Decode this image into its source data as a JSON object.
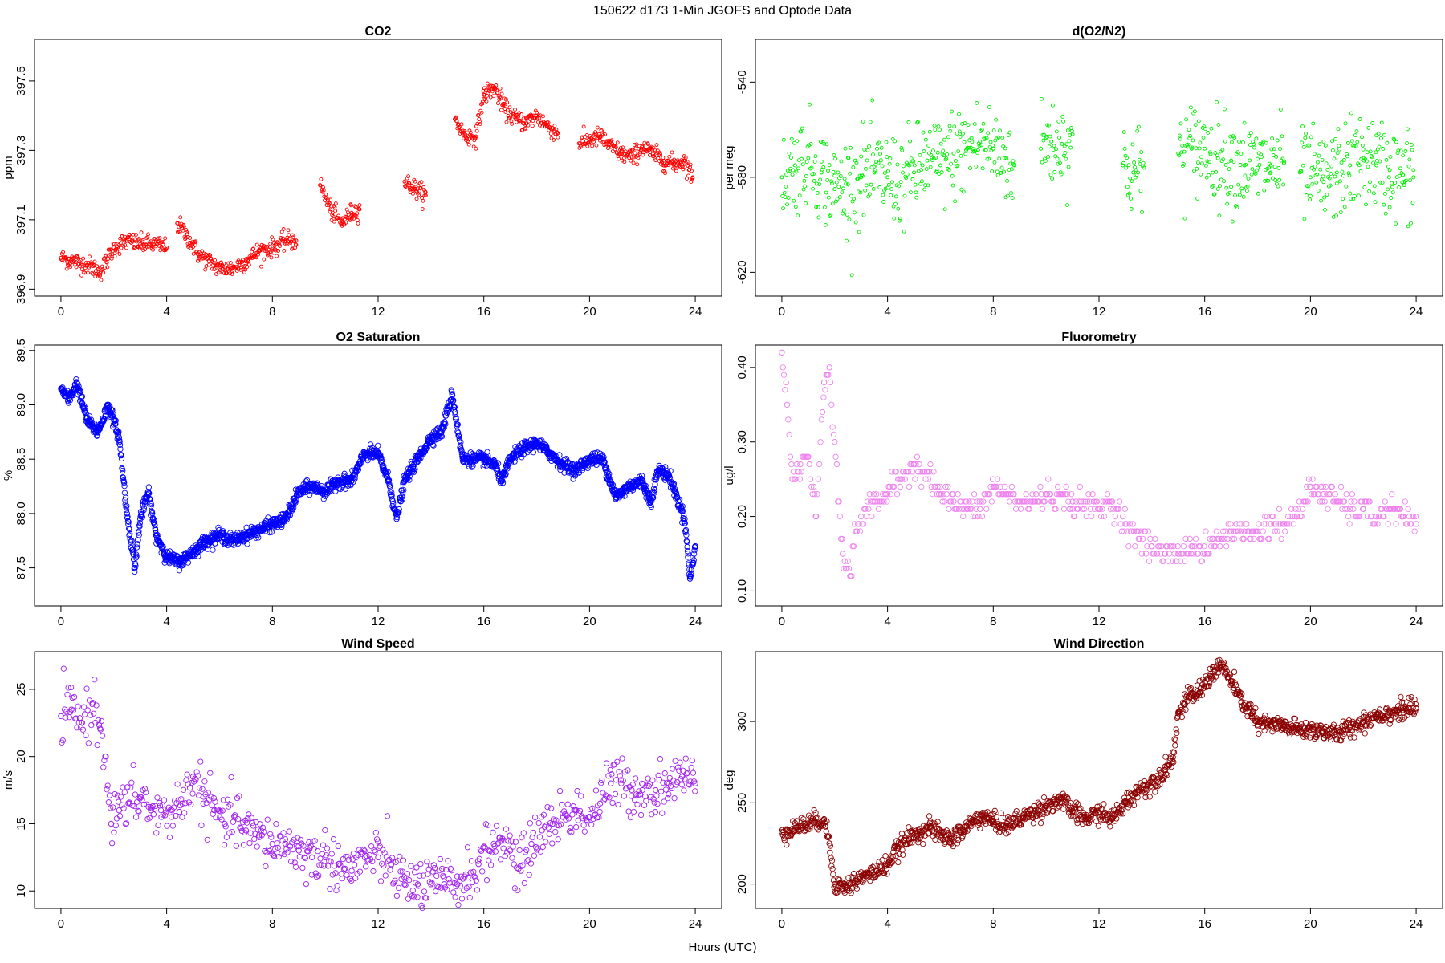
{
  "page": {
    "title": "150622   d173   1-Min  JGOFS and Optode Data",
    "xlabel": "Hours (UTC)"
  },
  "chart_data": [
    {
      "id": "co2",
      "type": "scatter",
      "title": "CO2",
      "ylabel": "ppm",
      "color": "#ff0000",
      "marker_size": "small",
      "xlim": [
        -1,
        25
      ],
      "ylim": [
        396.88,
        397.62
      ],
      "xticks": [
        0,
        4,
        8,
        12,
        16,
        20,
        24
      ],
      "yticks": [
        396.9,
        397.1,
        397.3,
        397.5
      ],
      "ytick_labels": [
        "396.9",
        "397.1",
        "397.3",
        "397.5"
      ],
      "segments": [
        {
          "x": [
            0.0,
            0.5,
            1.0,
            1.5,
            2.0,
            2.5,
            3.0,
            3.5,
            4.0
          ],
          "y": [
            396.99,
            396.98,
            396.97,
            396.95,
            397.02,
            397.04,
            397.03,
            397.03,
            397.02
          ]
        },
        {
          "x": [
            4.4,
            4.8,
            5.2,
            5.6,
            6.0,
            6.5,
            7.0,
            7.5,
            8.0,
            8.5,
            8.9
          ],
          "y": [
            397.09,
            397.05,
            397.0,
            396.98,
            396.96,
            396.96,
            396.98,
            397.01,
            397.02,
            397.04,
            397.04
          ]
        },
        {
          "x": [
            9.8,
            10.2,
            10.6,
            11.0,
            11.3
          ],
          "y": [
            397.2,
            397.13,
            397.09,
            397.12,
            397.13
          ]
        },
        {
          "x": [
            13.0,
            13.4,
            13.8
          ],
          "y": [
            397.21,
            397.19,
            397.17
          ]
        },
        {
          "x": [
            14.9,
            15.3,
            15.7,
            16.0,
            16.4,
            16.8,
            17.2,
            17.6,
            18.0,
            18.4,
            18.8
          ],
          "y": [
            397.39,
            397.34,
            397.34,
            397.46,
            397.48,
            397.42,
            397.39,
            397.38,
            397.4,
            397.37,
            397.35
          ]
        },
        {
          "x": [
            19.6,
            20.0,
            20.4,
            20.8,
            21.2,
            21.6,
            22.0,
            22.4,
            22.8,
            23.2,
            23.6,
            23.9
          ],
          "y": [
            397.32,
            397.33,
            397.34,
            397.31,
            397.29,
            397.28,
            397.31,
            397.29,
            397.27,
            397.26,
            397.27,
            397.22
          ]
        }
      ]
    },
    {
      "id": "do2n2",
      "type": "scatter",
      "title": "d(O2/N2)",
      "ylabel": "per meg",
      "color": "#00ee00",
      "marker_size": "small",
      "xlim": [
        -1,
        25
      ],
      "ylim": [
        -630,
        -522
      ],
      "xticks": [
        0,
        4,
        8,
        12,
        16,
        20,
        24
      ],
      "yticks": [
        -620,
        -580,
        -540
      ],
      "ytick_labels": [
        "-620",
        "-580",
        "-540"
      ],
      "segments": [
        {
          "x": [
            0.0,
            0.5,
            1.0,
            1.5,
            2.0,
            2.5,
            3.0,
            3.5,
            4.0,
            4.5,
            5.0,
            5.5,
            6.0,
            6.5,
            7.0,
            7.5,
            8.0,
            8.5,
            8.8
          ],
          "y": [
            -580,
            -575,
            -572,
            -578,
            -585,
            -583,
            -580,
            -578,
            -580,
            -582,
            -578,
            -573,
            -575,
            -570,
            -568,
            -565,
            -568,
            -572,
            -575
          ]
        },
        {
          "x": [
            9.8,
            10.2,
            10.6,
            11.0
          ],
          "y": [
            -568,
            -565,
            -566,
            -562
          ]
        },
        {
          "x": [
            12.9,
            13.3,
            13.7
          ],
          "y": [
            -575,
            -578,
            -576
          ]
        },
        {
          "x": [
            15.0,
            15.5,
            16.0,
            16.5,
            17.0,
            17.5,
            18.0,
            18.5,
            19.0
          ],
          "y": [
            -570,
            -568,
            -568,
            -572,
            -573,
            -575,
            -576,
            -575,
            -574
          ]
        },
        {
          "x": [
            19.6,
            20.0,
            20.5,
            21.0,
            21.5,
            22.0,
            22.5,
            23.0,
            23.5,
            23.9
          ],
          "y": [
            -578,
            -580,
            -582,
            -578,
            -575,
            -572,
            -575,
            -577,
            -579,
            -580
          ]
        }
      ]
    },
    {
      "id": "o2sat",
      "type": "scatter",
      "title": "O2 Saturation",
      "ylabel": "%",
      "color": "#0000ff",
      "marker_size": "medium",
      "xlim": [
        -1,
        25
      ],
      "ylim": [
        87.15,
        89.55
      ],
      "xticks": [
        0,
        4,
        8,
        12,
        16,
        20,
        24
      ],
      "yticks": [
        87.5,
        88.0,
        88.5,
        89.0,
        89.5
      ],
      "ytick_labels": [
        "87.5",
        "88.0",
        "88.5",
        "89.0",
        "89.5"
      ],
      "segments": [
        {
          "x": [
            0.0,
            0.3,
            0.6,
            1.0,
            1.4,
            1.8,
            2.2,
            2.5,
            2.8,
            3.0,
            3.3,
            3.6,
            4.0,
            4.5,
            5.0,
            5.5,
            6.0,
            6.5,
            7.0,
            7.5,
            8.0,
            8.5,
            9.0,
            9.5,
            10.0,
            10.5,
            11.0,
            11.5,
            12.0,
            12.4,
            12.7,
            13.0,
            13.5,
            14.0,
            14.4,
            14.8,
            15.2,
            15.6,
            16.0,
            16.4,
            16.7,
            17.0,
            17.5,
            18.0,
            18.5,
            19.0,
            19.5,
            20.0,
            20.5,
            21.0,
            21.5,
            22.0,
            22.3,
            22.6,
            23.0,
            23.3,
            23.6,
            23.8,
            24.0
          ],
          "y": [
            89.15,
            89.05,
            89.2,
            88.85,
            88.75,
            89.0,
            88.7,
            88.0,
            87.5,
            87.95,
            88.2,
            87.8,
            87.6,
            87.55,
            87.65,
            87.75,
            87.8,
            87.75,
            87.8,
            87.85,
            87.9,
            87.95,
            88.2,
            88.25,
            88.2,
            88.3,
            88.3,
            88.55,
            88.55,
            88.3,
            87.95,
            88.3,
            88.5,
            88.7,
            88.75,
            89.1,
            88.5,
            88.5,
            88.5,
            88.45,
            88.3,
            88.5,
            88.6,
            88.65,
            88.55,
            88.45,
            88.4,
            88.5,
            88.5,
            88.15,
            88.25,
            88.3,
            88.1,
            88.4,
            88.35,
            88.15,
            87.95,
            87.4,
            87.7
          ]
        }
      ]
    },
    {
      "id": "fluor",
      "type": "scatter",
      "title": "Fluorometry",
      "ylabel": "ug/l",
      "color": "#ee82ee",
      "marker_size": "medium",
      "xlim": [
        -1,
        25
      ],
      "ylim": [
        0.08,
        0.43
      ],
      "xticks": [
        0,
        4,
        8,
        12,
        16,
        20,
        24
      ],
      "yticks": [
        0.1,
        0.2,
        0.3,
        0.4
      ],
      "ytick_labels": [
        "0.10",
        "0.20",
        "0.30",
        "0.40"
      ],
      "segments": [
        {
          "x": [
            0.0,
            0.2,
            0.4,
            0.7,
            1.0,
            1.3,
            1.6,
            1.8,
            2.0,
            2.3,
            2.6,
            2.8,
            3.0,
            3.5,
            4.0,
            4.5,
            5.0,
            5.5,
            6.0,
            6.5,
            7.0,
            7.5,
            8.0,
            8.5,
            9.0,
            9.5,
            10.0,
            11.0,
            12.0,
            12.5,
            13.0,
            13.5,
            14.0,
            14.5,
            15.0,
            15.5,
            16.0,
            16.5,
            17.0,
            17.5,
            18.0,
            18.5,
            19.0,
            19.5,
            20.0,
            20.5,
            21.0,
            21.5,
            22.0,
            22.5,
            23.0,
            23.5,
            24.0
          ],
          "y": [
            0.42,
            0.35,
            0.25,
            0.27,
            0.28,
            0.2,
            0.38,
            0.4,
            0.3,
            0.15,
            0.12,
            0.18,
            0.2,
            0.22,
            0.23,
            0.25,
            0.27,
            0.26,
            0.23,
            0.22,
            0.21,
            0.21,
            0.24,
            0.23,
            0.22,
            0.22,
            0.23,
            0.22,
            0.21,
            0.22,
            0.19,
            0.17,
            0.16,
            0.15,
            0.15,
            0.16,
            0.15,
            0.17,
            0.18,
            0.18,
            0.18,
            0.19,
            0.19,
            0.2,
            0.24,
            0.23,
            0.22,
            0.21,
            0.21,
            0.2,
            0.21,
            0.2,
            0.19
          ]
        }
      ]
    },
    {
      "id": "wspd",
      "type": "scatter",
      "title": "Wind Speed",
      "ylabel": "m/s",
      "color": "#a020f0",
      "marker_size": "medium",
      "xlim": [
        -1,
        25
      ],
      "ylim": [
        8.7,
        27.8
      ],
      "xticks": [
        0,
        4,
        8,
        12,
        16,
        20,
        24
      ],
      "yticks": [
        10,
        15,
        20,
        25
      ],
      "ytick_labels": [
        "10",
        "15",
        "20",
        "25"
      ],
      "segments": [
        {
          "x": [
            0.0,
            0.4,
            0.8,
            1.2,
            1.5,
            1.7,
            1.9,
            2.2,
            2.6,
            3.0,
            3.4,
            3.8,
            4.2,
            4.6,
            5.0,
            5.4,
            5.8,
            6.2,
            6.6,
            7.0,
            7.5,
            8.0,
            8.5,
            9.0,
            9.5,
            10.0,
            10.5,
            11.0,
            11.5,
            12.0,
            12.5,
            13.0,
            13.5,
            14.0,
            14.5,
            15.0,
            15.4,
            15.8,
            16.2,
            16.6,
            17.0,
            17.4,
            17.8,
            18.2,
            18.6,
            19.0,
            19.5,
            20.0,
            20.4,
            20.8,
            21.2,
            21.6,
            22.0,
            22.5,
            23.0,
            23.5,
            24.0
          ],
          "y": [
            23.0,
            23.5,
            22.5,
            24.0,
            22.0,
            20.0,
            15.0,
            16.0,
            16.5,
            17.0,
            16.0,
            15.5,
            16.0,
            16.5,
            18.5,
            17.0,
            16.0,
            15.0,
            15.5,
            14.5,
            14.0,
            13.5,
            13.5,
            13.0,
            12.5,
            12.5,
            12.0,
            11.5,
            12.5,
            12.5,
            12.0,
            10.5,
            10.5,
            10.5,
            10.5,
            10.5,
            11.0,
            12.0,
            13.0,
            14.0,
            13.0,
            11.5,
            13.5,
            14.5,
            15.0,
            15.5,
            16.0,
            15.5,
            16.5,
            18.0,
            18.0,
            17.5,
            17.5,
            17.5,
            18.0,
            18.5,
            18.0
          ]
        }
      ]
    },
    {
      "id": "wdir",
      "type": "scatter",
      "title": "Wind Direction",
      "ylabel": "deg",
      "color": "#8b0000",
      "marker_size": "medium",
      "xlim": [
        -1,
        25
      ],
      "ylim": [
        185,
        343
      ],
      "xticks": [
        0,
        4,
        8,
        12,
        16,
        20,
        24
      ],
      "yticks": [
        200,
        250,
        300
      ],
      "ytick_labels": [
        "200",
        "250",
        "300"
      ],
      "segments": [
        {
          "x": [
            0.0,
            0.4,
            0.8,
            1.2,
            1.6,
            1.8,
            2.0,
            2.4,
            2.8,
            3.2,
            3.6,
            4.0,
            4.4,
            4.8,
            5.2,
            5.6,
            6.0,
            6.4,
            6.8,
            7.2,
            7.6,
            8.0,
            8.5,
            9.0,
            9.5,
            10.0,
            10.5,
            11.0,
            11.5,
            12.0,
            12.5,
            13.0,
            13.5,
            14.0,
            14.5,
            14.8,
            15.0,
            15.4,
            15.8,
            16.2,
            16.6,
            17.0,
            17.4,
            17.8,
            18.0,
            18.5,
            19.0,
            19.5,
            20.0,
            20.5,
            21.0,
            21.5,
            22.0,
            22.5,
            23.0,
            23.5,
            24.0
          ],
          "y": [
            232,
            234,
            236,
            238,
            240,
            225,
            200,
            198,
            202,
            205,
            208,
            212,
            222,
            228,
            232,
            235,
            230,
            228,
            232,
            238,
            242,
            238,
            236,
            240,
            244,
            248,
            252,
            245,
            240,
            244,
            240,
            250,
            258,
            262,
            270,
            278,
            305,
            315,
            318,
            328,
            335,
            325,
            312,
            305,
            298,
            298,
            297,
            295,
            295,
            294,
            292,
            296,
            300,
            304,
            305,
            307,
            308
          ]
        }
      ]
    }
  ]
}
